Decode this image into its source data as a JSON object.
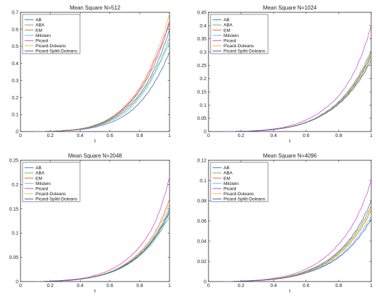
{
  "chart_data": [
    {
      "type": "line",
      "title": "Mean Square N=512",
      "xlabel": "t",
      "ylabel": "",
      "xlim": [
        0,
        1
      ],
      "ylim": [
        0,
        0.7
      ],
      "xticks": [
        "0",
        "0.2",
        "0.4",
        "0.6",
        "0.8",
        "1"
      ],
      "yticks": [
        "0",
        "0.1",
        "0.2",
        "0.3",
        "0.4",
        "0.5",
        "0.6",
        "0.7"
      ],
      "legend_position": "top-left",
      "x": [
        0.1,
        0.2,
        0.3,
        0.4,
        0.5,
        0.6,
        0.7,
        0.8,
        0.9,
        1.0
      ],
      "series": [
        {
          "name": "AB",
          "values": [
            0.0,
            0.002,
            0.006,
            0.015,
            0.035,
            0.07,
            0.13,
            0.22,
            0.37,
            0.6
          ]
        },
        {
          "name": "ABA",
          "values": [
            0.0,
            0.002,
            0.006,
            0.014,
            0.032,
            0.065,
            0.12,
            0.21,
            0.35,
            0.55
          ]
        },
        {
          "name": "EM",
          "values": [
            0.0,
            0.002,
            0.007,
            0.016,
            0.037,
            0.075,
            0.14,
            0.24,
            0.4,
            0.64
          ]
        },
        {
          "name": "Milstein",
          "values": [
            0.0,
            0.002,
            0.006,
            0.014,
            0.03,
            0.06,
            0.11,
            0.2,
            0.34,
            0.53
          ]
        },
        {
          "name": "Picard",
          "values": [
            0.0,
            0.002,
            0.007,
            0.017,
            0.038,
            0.078,
            0.145,
            0.25,
            0.42,
            0.65
          ]
        },
        {
          "name": "Picard-Doleans",
          "values": [
            0.0,
            0.002,
            0.007,
            0.017,
            0.039,
            0.08,
            0.15,
            0.26,
            0.44,
            0.69
          ]
        },
        {
          "name": "Picard-Splitt-Doleans",
          "values": [
            0.0,
            0.001,
            0.005,
            0.012,
            0.026,
            0.052,
            0.095,
            0.17,
            0.29,
            0.47
          ]
        }
      ]
    },
    {
      "type": "line",
      "title": "Mean Square N=1024",
      "xlabel": "t",
      "ylabel": "",
      "xlim": [
        0,
        1
      ],
      "ylim": [
        0,
        0.45
      ],
      "xticks": [
        "0",
        "0.2",
        "0.4",
        "0.6",
        "0.8",
        "1"
      ],
      "yticks": [
        "0",
        "0.05",
        "0.1",
        "0.15",
        "0.2",
        "0.25",
        "0.3",
        "0.35",
        "0.4",
        "0.45"
      ],
      "legend_position": "top-left",
      "x": [
        0.1,
        0.2,
        0.3,
        0.4,
        0.5,
        0.6,
        0.7,
        0.8,
        0.9,
        1.0
      ],
      "series": [
        {
          "name": "AB",
          "values": [
            0.0,
            0.001,
            0.003,
            0.008,
            0.018,
            0.035,
            0.065,
            0.11,
            0.18,
            0.29
          ]
        },
        {
          "name": "ABA",
          "values": [
            0.0,
            0.001,
            0.003,
            0.008,
            0.017,
            0.034,
            0.063,
            0.105,
            0.175,
            0.28
          ]
        },
        {
          "name": "EM",
          "values": [
            0.0,
            0.001,
            0.003,
            0.008,
            0.018,
            0.036,
            0.066,
            0.112,
            0.185,
            0.3
          ]
        },
        {
          "name": "Milstein",
          "values": [
            0.0,
            0.001,
            0.003,
            0.008,
            0.018,
            0.036,
            0.067,
            0.113,
            0.19,
            0.31
          ]
        },
        {
          "name": "Picard",
          "values": [
            0.0,
            0.001,
            0.004,
            0.01,
            0.022,
            0.044,
            0.08,
            0.135,
            0.23,
            0.4
          ]
        },
        {
          "name": "Picard-Doleans",
          "values": [
            0.0,
            0.001,
            0.003,
            0.008,
            0.018,
            0.035,
            0.064,
            0.108,
            0.18,
            0.29
          ]
        },
        {
          "name": "Picard-Splitt-Doleans",
          "values": [
            0.0,
            0.001,
            0.003,
            0.008,
            0.017,
            0.034,
            0.062,
            0.104,
            0.17,
            0.27
          ]
        }
      ]
    },
    {
      "type": "line",
      "title": "Mean Square N=2048",
      "xlabel": "t",
      "ylabel": "",
      "xlim": [
        0,
        1
      ],
      "ylim": [
        0,
        0.25
      ],
      "xticks": [
        "0",
        "0.2",
        "0.4",
        "0.6",
        "0.8",
        "1"
      ],
      "yticks": [
        "0",
        "0.05",
        "0.1",
        "0.15",
        "0.2",
        "0.25"
      ],
      "legend_position": "top-left",
      "x": [
        0.1,
        0.2,
        0.3,
        0.4,
        0.5,
        0.6,
        0.7,
        0.8,
        0.9,
        1.0
      ],
      "series": [
        {
          "name": "AB",
          "values": [
            0.0,
            0.001,
            0.002,
            0.005,
            0.01,
            0.019,
            0.034,
            0.057,
            0.092,
            0.15
          ]
        },
        {
          "name": "ABA",
          "values": [
            0.0,
            0.001,
            0.002,
            0.005,
            0.01,
            0.018,
            0.032,
            0.054,
            0.088,
            0.14
          ]
        },
        {
          "name": "EM",
          "values": [
            0.0,
            0.001,
            0.002,
            0.005,
            0.011,
            0.02,
            0.036,
            0.06,
            0.1,
            0.17
          ]
        },
        {
          "name": "Milstein",
          "values": [
            0.0,
            0.001,
            0.002,
            0.005,
            0.01,
            0.018,
            0.032,
            0.053,
            0.085,
            0.135
          ]
        },
        {
          "name": "Picard",
          "values": [
            0.0,
            0.001,
            0.003,
            0.006,
            0.013,
            0.024,
            0.043,
            0.072,
            0.12,
            0.215
          ]
        },
        {
          "name": "Picard-Doleans",
          "values": [
            0.0,
            0.001,
            0.002,
            0.005,
            0.011,
            0.02,
            0.035,
            0.058,
            0.095,
            0.16
          ]
        },
        {
          "name": "Picard-Splitt-Doleans",
          "values": [
            0.0,
            0.001,
            0.002,
            0.005,
            0.01,
            0.019,
            0.033,
            0.055,
            0.09,
            0.145
          ]
        }
      ]
    },
    {
      "type": "line",
      "title": "Mean Square N=4096",
      "xlabel": "t",
      "ylabel": "",
      "xlim": [
        0,
        1
      ],
      "ylim": [
        0,
        0.12
      ],
      "xticks": [
        "0",
        "0.2",
        "0.4",
        "0.6",
        "0.8",
        "1"
      ],
      "yticks": [
        "0",
        "0.02",
        "0.04",
        "0.06",
        "0.08",
        "0.1",
        "0.12"
      ],
      "legend_position": "top-left",
      "x": [
        0.1,
        0.2,
        0.3,
        0.4,
        0.5,
        0.6,
        0.7,
        0.8,
        0.9,
        1.0
      ],
      "series": [
        {
          "name": "AB",
          "values": [
            0.0,
            0.0005,
            0.0012,
            0.0027,
            0.0055,
            0.0105,
            0.018,
            0.03,
            0.049,
            0.08
          ]
        },
        {
          "name": "ABA",
          "values": [
            0.0,
            0.0005,
            0.0011,
            0.0025,
            0.005,
            0.0095,
            0.016,
            0.027,
            0.044,
            0.07
          ]
        },
        {
          "name": "EM",
          "values": [
            0.0,
            0.0005,
            0.0012,
            0.0026,
            0.0053,
            0.01,
            0.017,
            0.029,
            0.047,
            0.075
          ]
        },
        {
          "name": "Milstein",
          "values": [
            0.0,
            0.0004,
            0.001,
            0.0023,
            0.0047,
            0.009,
            0.015,
            0.025,
            0.041,
            0.065
          ]
        },
        {
          "name": "Picard",
          "values": [
            0.0,
            0.0006,
            0.0014,
            0.0032,
            0.0065,
            0.0125,
            0.022,
            0.037,
            0.06,
            0.1
          ]
        },
        {
          "name": "Picard-Doleans",
          "values": [
            0.0,
            0.0005,
            0.0011,
            0.0025,
            0.0051,
            0.0097,
            0.0165,
            0.028,
            0.045,
            0.072
          ]
        },
        {
          "name": "Picard-Splitt-Doleans",
          "values": [
            0.0,
            0.0004,
            0.001,
            0.0022,
            0.0045,
            0.0086,
            0.0145,
            0.024,
            0.039,
            0.062
          ]
        }
      ]
    }
  ],
  "colors": {
    "AB": "#0072BD",
    "ABA": "#77AC30",
    "EM": "#D95319",
    "Milstein": "#4DBEEE",
    "Picard": "#CC33CC",
    "Picard-Doleans": "#EDB120",
    "Picard-Splitt-Doleans": "#3344AA"
  }
}
